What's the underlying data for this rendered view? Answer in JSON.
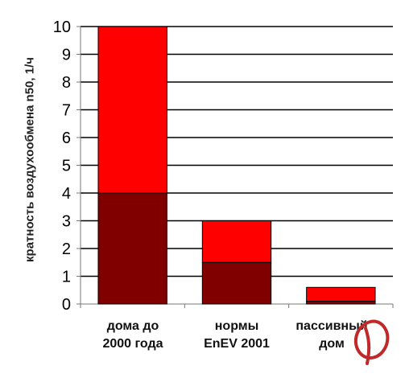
{
  "chart_data": {
    "type": "bar",
    "stacked": true,
    "categories": [
      "дома до\n2000 года",
      "нормы\nEnEV 2001",
      "пассивный\nдом"
    ],
    "series": [
      {
        "values": [
          4,
          1.5,
          0.1
        ],
        "color": "#800000"
      },
      {
        "values": [
          6,
          1.5,
          0.5
        ],
        "color": "#ff0000"
      }
    ],
    "ylabel": "кратность воздухообмена n50, 1/ч",
    "ylim": [
      0,
      10
    ],
    "yticks": [
      "0",
      "1",
      "2",
      "3",
      "4",
      "5",
      "6",
      "7",
      "8",
      "9",
      "10"
    ],
    "grid": true,
    "legend": "none"
  },
  "logo": {
    "icon": "stylized-phi-leaf-logo",
    "color": "#c0282a"
  }
}
